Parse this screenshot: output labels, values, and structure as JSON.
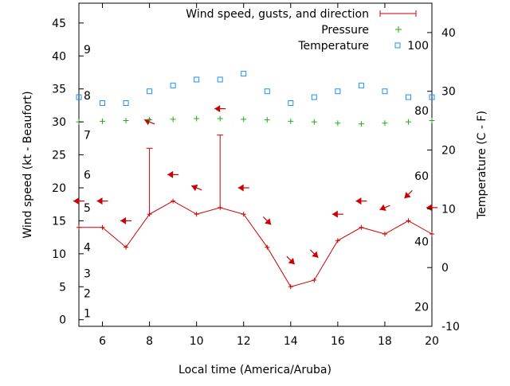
{
  "chart_data": {
    "type": "line",
    "x_label": "Local time (America/Aruba)",
    "y_label_left": "Wind speed (kt - Beaufort)",
    "y_label_right": "Temperature (C - F)",
    "x_range": [
      5,
      20
    ],
    "x_ticks": [
      6,
      8,
      10,
      12,
      14,
      16,
      18,
      20
    ],
    "x_tick_labels": [
      "6",
      "8",
      "10",
      "12",
      "14",
      "16",
      "18",
      "20"
    ],
    "y_left_range": [
      -1,
      48
    ],
    "y_left_ticks": [
      0,
      5,
      10,
      15,
      20,
      25,
      30,
      35,
      40,
      45
    ],
    "y_left_tick_labels": [
      "0",
      "5",
      "10",
      "15",
      "20",
      "25",
      "30",
      "35",
      "40",
      "45"
    ],
    "y_right_range": [
      -10,
      45
    ],
    "y_right_ticks": [
      -10,
      0,
      10,
      20,
      30,
      40
    ],
    "y_right_tick_labels": [
      "-10",
      "0",
      "10",
      "20",
      "30",
      "40"
    ],
    "beaufort_labels": [
      {
        "text": "1",
        "kt": 1
      },
      {
        "text": "2",
        "kt": 4
      },
      {
        "text": "3",
        "kt": 7
      },
      {
        "text": "4",
        "kt": 11
      },
      {
        "text": "5",
        "kt": 17
      },
      {
        "text": "6",
        "kt": 22
      },
      {
        "text": "7",
        "kt": 28
      },
      {
        "text": "8",
        "kt": 34
      },
      {
        "text": "9",
        "kt": 41
      }
    ],
    "fahrenheit_labels": [
      {
        "text": "20",
        "c": -6.7
      },
      {
        "text": "40",
        "c": 4.4
      },
      {
        "text": "60",
        "c": 15.6
      },
      {
        "text": "80",
        "c": 26.7
      },
      {
        "text": "100",
        "c": 37.8
      }
    ],
    "legend_position": "top-right",
    "series": [
      {
        "name": "Wind speed, gusts, and direction",
        "color": "#cc0000",
        "x": [
          5,
          6,
          7,
          8,
          9,
          10,
          11,
          12,
          13,
          14,
          15,
          16,
          17,
          18,
          19,
          20
        ],
        "values": [
          14,
          14,
          11,
          16,
          18,
          16,
          17,
          16,
          11,
          5,
          6,
          12,
          14,
          13,
          15,
          13
        ],
        "gusts": [
          null,
          null,
          null,
          26,
          null,
          null,
          28,
          null,
          null,
          null,
          null,
          null,
          null,
          null,
          null,
          null
        ],
        "arrows": [
          {
            "x": 5,
            "kt": 18,
            "dir": "E"
          },
          {
            "x": 6,
            "kt": 18,
            "dir": "E"
          },
          {
            "x": 7,
            "kt": 15,
            "dir": "E"
          },
          {
            "x": 8,
            "kt": 30,
            "dir": "ESE"
          },
          {
            "x": 9,
            "kt": 22,
            "dir": "E"
          },
          {
            "x": 10,
            "kt": 20,
            "dir": "ESE"
          },
          {
            "x": 11,
            "kt": 32,
            "dir": "E"
          },
          {
            "x": 12,
            "kt": 20,
            "dir": "E"
          },
          {
            "x": 13,
            "kt": 15,
            "dir": "NW"
          },
          {
            "x": 14,
            "kt": 9,
            "dir": "NW"
          },
          {
            "x": 15,
            "kt": 10,
            "dir": "NW"
          },
          {
            "x": 16,
            "kt": 16,
            "dir": "E"
          },
          {
            "x": 17,
            "kt": 18,
            "dir": "E"
          },
          {
            "x": 18,
            "kt": 17,
            "dir": "ENE"
          },
          {
            "x": 19,
            "kt": 19,
            "dir": "NE"
          },
          {
            "x": 20,
            "kt": 17,
            "dir": "E"
          }
        ]
      },
      {
        "name": "Pressure",
        "color": "#22aa22",
        "x": [
          5,
          6,
          7,
          8,
          9,
          10,
          11,
          12,
          13,
          14,
          15,
          16,
          17,
          18,
          19,
          20
        ],
        "values": [
          30,
          30.1,
          30.2,
          30.3,
          30.4,
          30.5,
          30.5,
          30.4,
          30.3,
          30.1,
          30.0,
          29.8,
          29.7,
          29.8,
          30.0,
          30.2
        ],
        "axis": "left"
      },
      {
        "name": "Temperature",
        "color": "#1e90ff",
        "x": [
          5,
          6,
          7,
          8,
          9,
          10,
          11,
          12,
          13,
          14,
          15,
          16,
          17,
          18,
          19,
          20
        ],
        "values": [
          29,
          28,
          28,
          30,
          31,
          32,
          32,
          33,
          30,
          28,
          29,
          30,
          31,
          30,
          29,
          29
        ],
        "axis": "right"
      }
    ]
  }
}
